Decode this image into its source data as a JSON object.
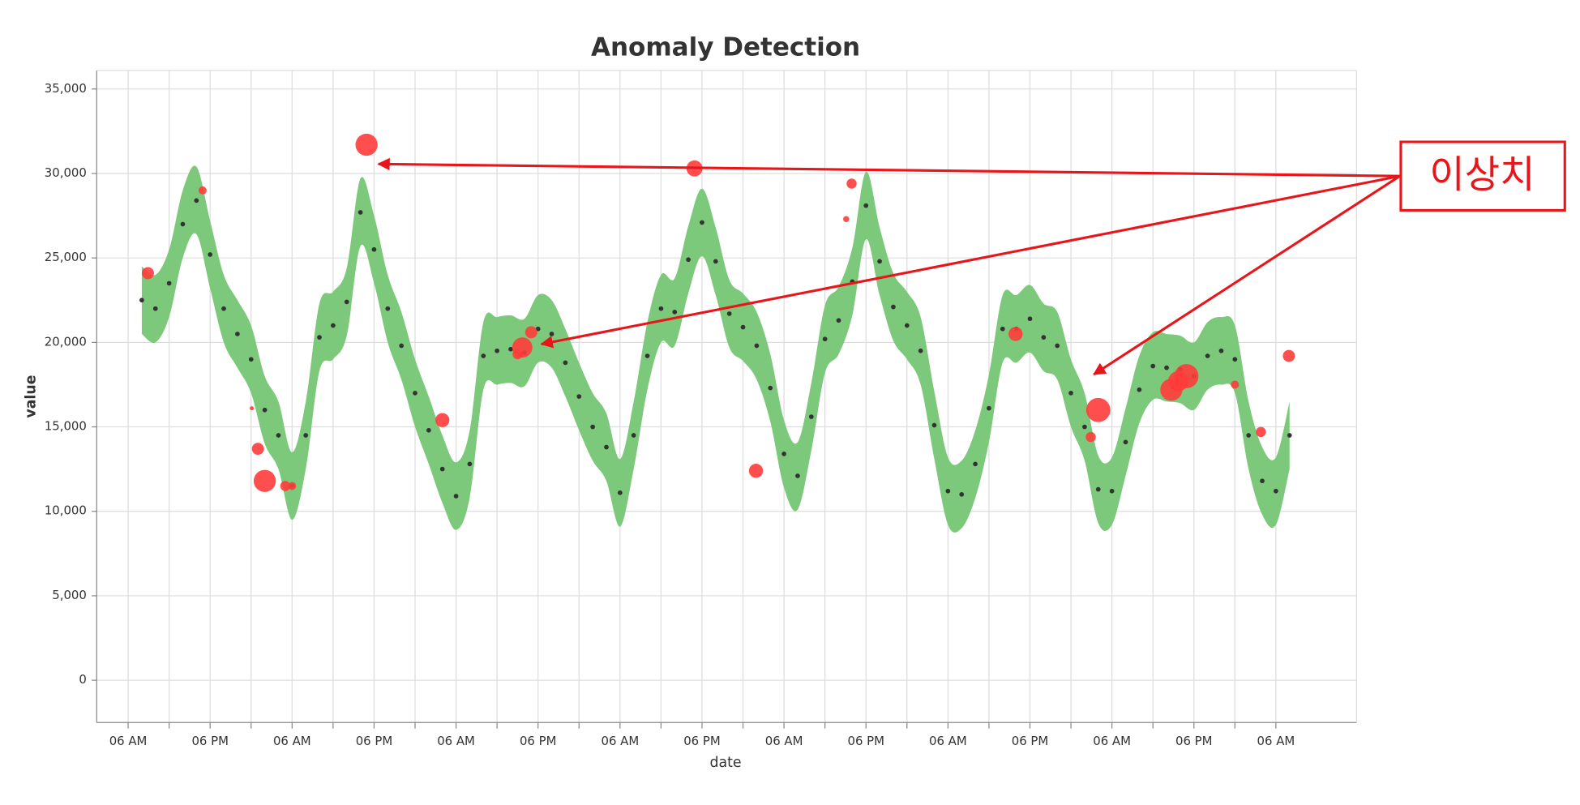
{
  "chart_data": {
    "type": "band-scatter",
    "title": "Anomaly Detection",
    "x_label": "date",
    "y_label": "value",
    "xlim": [
      1.4,
      185.8
    ],
    "xticks": [
      {
        "value": 6,
        "label": "06 AM"
      },
      {
        "value": 18,
        "label": "06 PM"
      },
      {
        "value": 30,
        "label": "06 AM"
      },
      {
        "value": 42,
        "label": "06 PM"
      },
      {
        "value": 54,
        "label": "06 AM"
      },
      {
        "value": 66,
        "label": "06 PM"
      },
      {
        "value": 78,
        "label": "06 AM"
      },
      {
        "value": 90,
        "label": "06 PM"
      },
      {
        "value": 102,
        "label": "06 AM"
      },
      {
        "value": 114,
        "label": "06 PM"
      },
      {
        "value": 126,
        "label": "06 AM"
      },
      {
        "value": 138,
        "label": "06 PM"
      },
      {
        "value": 150,
        "label": "06 AM"
      },
      {
        "value": 162,
        "label": "06 PM"
      },
      {
        "value": 174,
        "label": "06 AM"
      }
    ],
    "ylim": [
      -2500,
      36100
    ],
    "yticks": [
      0,
      {
        "value": 5000,
        "label": "5,000"
      },
      {
        "value": 10000,
        "label": "10,000"
      },
      {
        "value": 15000,
        "label": "15,000"
      },
      {
        "value": 20000,
        "label": "20,000"
      },
      {
        "value": 25000,
        "label": "25,000"
      },
      {
        "value": 30000,
        "label": "30,000"
      },
      {
        "value": 35000,
        "label": "35,000"
      }
    ],
    "grid": true,
    "band_color": "#7dc97b",
    "point_color": "#333333",
    "anomaly_color": "#ff3b3b",
    "x": [
      8,
      10,
      12,
      14,
      16,
      18,
      20,
      22,
      24,
      26,
      28,
      30,
      32,
      34,
      36,
      38,
      40,
      42,
      44,
      46,
      48,
      50,
      52,
      54,
      56,
      58,
      60,
      62,
      64,
      66,
      68,
      70,
      72,
      74,
      76,
      78,
      80,
      82,
      84,
      86,
      88,
      90,
      92,
      94,
      96,
      98,
      100,
      102,
      104,
      106,
      108,
      110,
      112,
      114,
      116,
      118,
      120,
      122,
      124,
      126,
      128,
      130,
      132,
      134,
      136,
      138,
      140,
      142,
      144,
      146,
      148,
      150,
      152,
      154,
      156,
      158,
      160,
      162,
      164,
      166,
      168,
      170,
      172,
      174,
      176
    ],
    "values": [
      22500,
      22000,
      23500,
      27000,
      28400,
      25200,
      22000,
      20500,
      19000,
      16000,
      14500,
      11500,
      14500,
      20300,
      21000,
      22400,
      27700,
      25500,
      22000,
      19800,
      17000,
      14800,
      12500,
      10900,
      12800,
      19200,
      19500,
      19600,
      19400,
      20800,
      20500,
      18800,
      16800,
      15000,
      13800,
      11100,
      14500,
      19200,
      22000,
      21800,
      24900,
      27100,
      24800,
      21700,
      20900,
      19800,
      17300,
      13400,
      12100,
      15600,
      20200,
      21300,
      23600,
      28100,
      24800,
      22100,
      21000,
      19500,
      15100,
      11200,
      11000,
      12800,
      16100,
      20800,
      20800,
      21400,
      20300,
      19800,
      17000,
      15000,
      11300,
      11200,
      14100,
      17200,
      18600,
      18500,
      18400,
      18000,
      19200,
      19500,
      19000,
      14500,
      11800,
      11200,
      14500
    ],
    "upper": [
      24500,
      24000,
      25500,
      29000,
      30400,
      27200,
      24000,
      22500,
      21000,
      18000,
      16500,
      13500,
      16500,
      22300,
      23000,
      24400,
      29700,
      27500,
      24000,
      21800,
      19000,
      16800,
      14500,
      12900,
      14800,
      21200,
      21500,
      21600,
      21400,
      22800,
      22500,
      20800,
      18800,
      17000,
      15800,
      13100,
      16500,
      21200,
      24000,
      23800,
      26900,
      29100,
      26800,
      23700,
      22900,
      21800,
      19300,
      15400,
      14100,
      17600,
      22200,
      23300,
      25600,
      30100,
      26800,
      24100,
      23000,
      21500,
      17100,
      13200,
      13000,
      14800,
      18100,
      22800,
      22800,
      23400,
      22300,
      21800,
      19000,
      17000,
      13300,
      13200,
      16100,
      19200,
      20600,
      20500,
      20400,
      20000,
      21200,
      21500,
      21000,
      16500,
      13800,
      13200,
      16500
    ],
    "lower": [
      20500,
      20000,
      21500,
      25000,
      26400,
      23200,
      20000,
      18500,
      17000,
      14000,
      12500,
      9500,
      12500,
      18300,
      19000,
      20400,
      25700,
      23500,
      20000,
      17800,
      15000,
      12800,
      10500,
      8900,
      10800,
      17200,
      17500,
      17600,
      17400,
      18800,
      18500,
      16800,
      14800,
      13000,
      11800,
      9100,
      12500,
      17200,
      20000,
      19800,
      22900,
      25100,
      22800,
      19700,
      18900,
      17800,
      15300,
      11400,
      10100,
      13600,
      18200,
      19300,
      21600,
      26100,
      22800,
      20100,
      19000,
      17500,
      13100,
      9200,
      9000,
      10800,
      14100,
      18800,
      18800,
      19400,
      18300,
      17800,
      15000,
      13000,
      9300,
      9200,
      12100,
      15200,
      16600,
      16500,
      16400,
      16000,
      17200,
      17500,
      17000,
      12500,
      9800,
      9200,
      12500
    ],
    "anomalies": {
      "x": [
        8.9,
        16.9,
        24.1,
        25,
        26,
        29,
        30,
        40.9,
        52,
        63,
        63.7,
        65,
        88.9,
        97.9,
        111.1,
        111.9,
        135.9,
        146.9,
        148,
        158.7,
        159.7,
        160.9,
        168,
        171.8,
        175.9
      ],
      "values": [
        24100,
        29000,
        16100,
        13700,
        11800,
        11500,
        11500,
        31700,
        15400,
        19300,
        19700,
        20600,
        30300,
        12400,
        27300,
        29400,
        20500,
        14400,
        16000,
        17200,
        17700,
        18000,
        17500,
        14700,
        19200
      ],
      "size": [
        6,
        4,
        2,
        6,
        11,
        5,
        4,
        11,
        7,
        5,
        10,
        6,
        8,
        7,
        3,
        5,
        7,
        5,
        12,
        11,
        10,
        12,
        4,
        5,
        6
      ]
    },
    "annotation": "이상치"
  }
}
